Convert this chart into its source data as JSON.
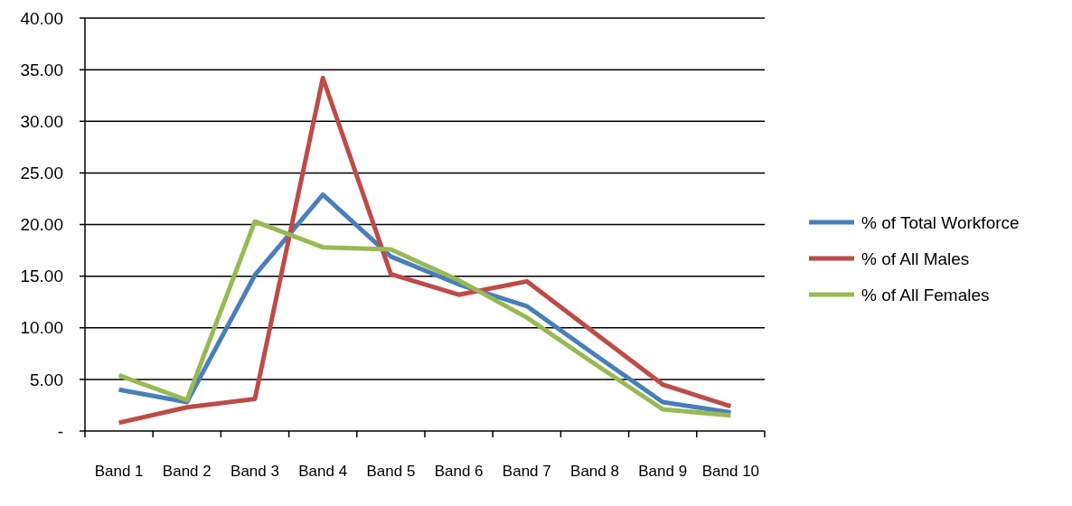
{
  "chart_data": {
    "type": "line",
    "categories": [
      "Band 1",
      "Band 2",
      "Band 3",
      "Band 4",
      "Band 5",
      "Band 6",
      "Band 7",
      "Band 8",
      "Band 9",
      "Band 10"
    ],
    "series": [
      {
        "name": "% of Total Workforce",
        "color": "#4a7ebb",
        "values": [
          4.0,
          2.8,
          15.1,
          22.9,
          16.9,
          14.2,
          12.1,
          7.4,
          2.8,
          1.8
        ]
      },
      {
        "name": "% of All Males",
        "color": "#be4b48",
        "values": [
          0.8,
          2.3,
          3.1,
          34.2,
          15.2,
          13.2,
          14.5,
          9.5,
          4.5,
          2.4
        ]
      },
      {
        "name": "% of All Females",
        "color": "#98b954",
        "values": [
          5.4,
          3.0,
          20.3,
          17.8,
          17.6,
          14.6,
          11.0,
          6.5,
          2.1,
          1.5
        ]
      }
    ],
    "ylim": [
      0,
      40
    ],
    "yticks": [
      {
        "value": 0,
        "label": "-"
      },
      {
        "value": 5,
        "label": "5.00"
      },
      {
        "value": 10,
        "label": "10.00"
      },
      {
        "value": 15,
        "label": "15.00"
      },
      {
        "value": 20,
        "label": "20.00"
      },
      {
        "value": 25,
        "label": "25.00"
      },
      {
        "value": 30,
        "label": "30.00"
      },
      {
        "value": 35,
        "label": "35.00"
      },
      {
        "value": 40,
        "label": "40.00"
      }
    ],
    "grid": "y",
    "legend": "right",
    "marker": "none",
    "line_style": "solid"
  }
}
